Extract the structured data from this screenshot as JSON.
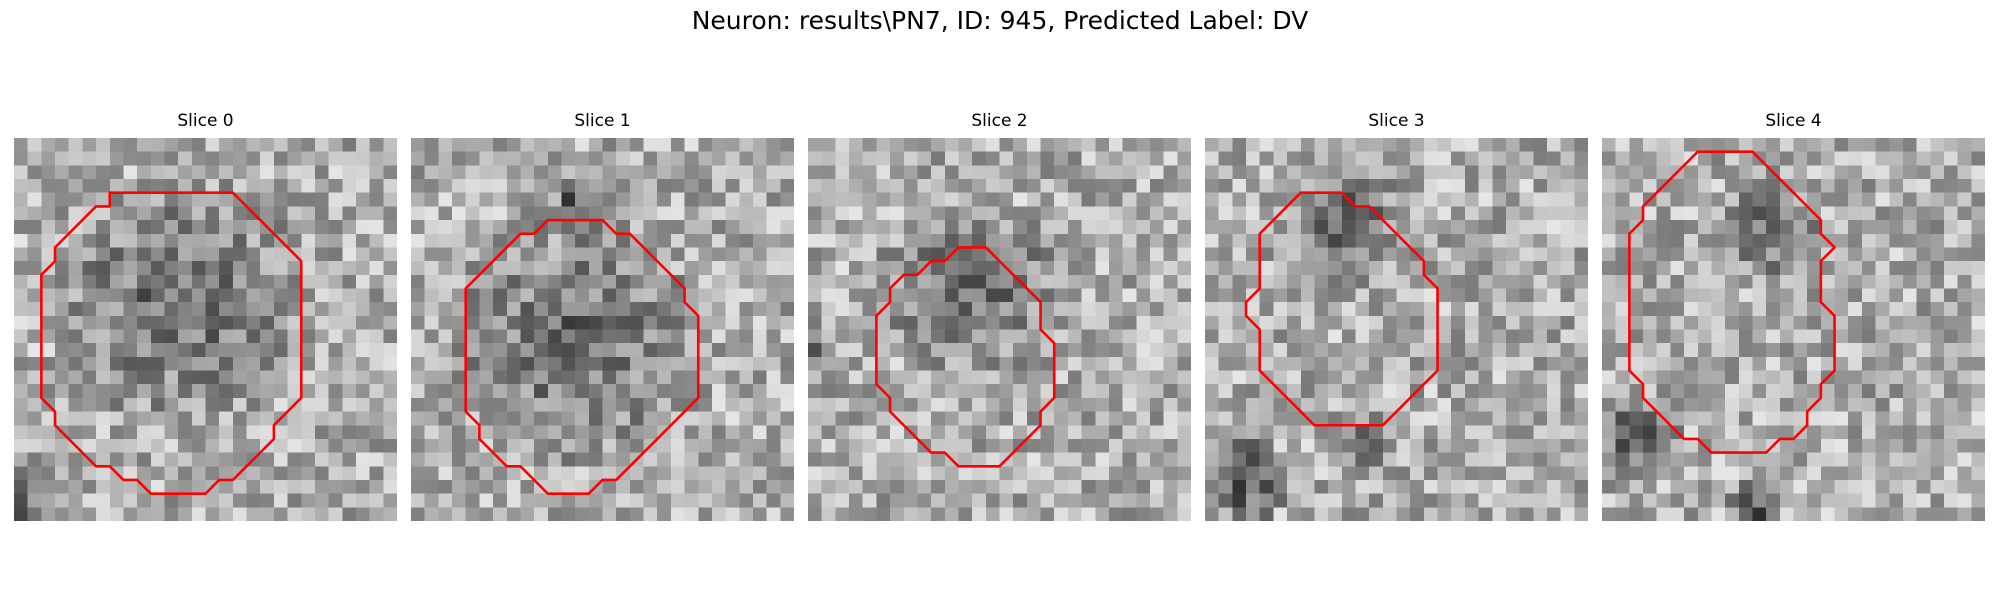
{
  "figure": {
    "title": "Neuron: results\\PN7, ID: 945, Predicted Label: DV"
  },
  "panels": [
    {
      "title": "Slice 0",
      "contour": [
        [
          14,
          4
        ],
        [
          16,
          4
        ],
        [
          17,
          5
        ],
        [
          18,
          6
        ],
        [
          19,
          7
        ],
        [
          20,
          8
        ],
        [
          21,
          9
        ],
        [
          21,
          11
        ],
        [
          21,
          13
        ],
        [
          21,
          15
        ],
        [
          21,
          17
        ],
        [
          21,
          19
        ],
        [
          20,
          20
        ],
        [
          19,
          21
        ],
        [
          19,
          22
        ],
        [
          18,
          23
        ],
        [
          17,
          24
        ],
        [
          16,
          25
        ],
        [
          15,
          25
        ],
        [
          14,
          26
        ],
        [
          13,
          26
        ],
        [
          12,
          26
        ],
        [
          11,
          26
        ],
        [
          10,
          26
        ],
        [
          9,
          25
        ],
        [
          8,
          25
        ],
        [
          7,
          24
        ],
        [
          6,
          24
        ],
        [
          5,
          23
        ],
        [
          4,
          22
        ],
        [
          3,
          21
        ],
        [
          3,
          20
        ],
        [
          2,
          19
        ],
        [
          2,
          18
        ],
        [
          2,
          16
        ],
        [
          2,
          14
        ],
        [
          2,
          12
        ],
        [
          2,
          10
        ],
        [
          3,
          9
        ],
        [
          3,
          8
        ],
        [
          4,
          7
        ],
        [
          5,
          6
        ],
        [
          6,
          5
        ],
        [
          7,
          5
        ],
        [
          7,
          4
        ],
        [
          9,
          4
        ],
        [
          11,
          4
        ],
        [
          13,
          4
        ]
      ],
      "dark_blob": [
        12,
        12,
        9.5
      ],
      "corner_dark": [
        [
          0,
          26,
          3
        ]
      ]
    },
    {
      "title": "Slice 1",
      "contour": [
        [
          13,
          6
        ],
        [
          14,
          6
        ],
        [
          15,
          7
        ],
        [
          16,
          7
        ],
        [
          17,
          8
        ],
        [
          18,
          9
        ],
        [
          19,
          10
        ],
        [
          20,
          11
        ],
        [
          20,
          12
        ],
        [
          21,
          13
        ],
        [
          21,
          15
        ],
        [
          21,
          17
        ],
        [
          21,
          19
        ],
        [
          20,
          20
        ],
        [
          19,
          21
        ],
        [
          18,
          22
        ],
        [
          17,
          23
        ],
        [
          16,
          24
        ],
        [
          15,
          25
        ],
        [
          14,
          25
        ],
        [
          13,
          26
        ],
        [
          12,
          26
        ],
        [
          11,
          26
        ],
        [
          10,
          26
        ],
        [
          9,
          25
        ],
        [
          8,
          24
        ],
        [
          7,
          24
        ],
        [
          6,
          23
        ],
        [
          5,
          22
        ],
        [
          5,
          21
        ],
        [
          4,
          20
        ],
        [
          4,
          19
        ],
        [
          4,
          17
        ],
        [
          4,
          15
        ],
        [
          4,
          13
        ],
        [
          4,
          11
        ],
        [
          5,
          10
        ],
        [
          6,
          9
        ],
        [
          7,
          8
        ],
        [
          8,
          7
        ],
        [
          9,
          7
        ],
        [
          10,
          6
        ],
        [
          11,
          6
        ],
        [
          12,
          6
        ]
      ],
      "dark_blob": [
        12,
        15,
        9.5
      ],
      "corner_dark": [
        [
          12,
          5,
          2
        ]
      ]
    },
    {
      "title": "Slice 2",
      "contour": [
        [
          11,
          8
        ],
        [
          13,
          8
        ],
        [
          14,
          9
        ],
        [
          15,
          10
        ],
        [
          16,
          11
        ],
        [
          17,
          12
        ],
        [
          17,
          14
        ],
        [
          18,
          15
        ],
        [
          18,
          17
        ],
        [
          18,
          19
        ],
        [
          17,
          20
        ],
        [
          17,
          21
        ],
        [
          16,
          22
        ],
        [
          15,
          23
        ],
        [
          14,
          24
        ],
        [
          13,
          24
        ],
        [
          12,
          24
        ],
        [
          11,
          24
        ],
        [
          10,
          23
        ],
        [
          9,
          23
        ],
        [
          8,
          22
        ],
        [
          7,
          21
        ],
        [
          6,
          20
        ],
        [
          6,
          19
        ],
        [
          5,
          18
        ],
        [
          5,
          17
        ],
        [
          5,
          15
        ],
        [
          5,
          13
        ],
        [
          6,
          12
        ],
        [
          6,
          11
        ],
        [
          7,
          10
        ],
        [
          8,
          10
        ],
        [
          9,
          9
        ],
        [
          10,
          9
        ]
      ],
      "dark_blob": [
        12,
        11,
        7
      ],
      "corner_dark": [
        [
          0,
          15,
          2
        ]
      ]
    },
    {
      "title": "Slice 3",
      "contour": [
        [
          8,
          4
        ],
        [
          10,
          4
        ],
        [
          11,
          5
        ],
        [
          12,
          5
        ],
        [
          13,
          6
        ],
        [
          14,
          7
        ],
        [
          15,
          8
        ],
        [
          16,
          9
        ],
        [
          16,
          10
        ],
        [
          17,
          11
        ],
        [
          17,
          13
        ],
        [
          17,
          15
        ],
        [
          17,
          17
        ],
        [
          16,
          18
        ],
        [
          15,
          19
        ],
        [
          14,
          20
        ],
        [
          13,
          21
        ],
        [
          12,
          21
        ],
        [
          11,
          21
        ],
        [
          10,
          21
        ],
        [
          9,
          21
        ],
        [
          8,
          21
        ],
        [
          7,
          20
        ],
        [
          6,
          19
        ],
        [
          5,
          18
        ],
        [
          4,
          17
        ],
        [
          4,
          16
        ],
        [
          4,
          14
        ],
        [
          3,
          13
        ],
        [
          3,
          12
        ],
        [
          4,
          11
        ],
        [
          4,
          9
        ],
        [
          4,
          7
        ],
        [
          5,
          6
        ],
        [
          6,
          5
        ],
        [
          7,
          4
        ]
      ],
      "dark_blob": [
        10,
        6,
        5
      ],
      "corner_dark": [
        [
          3,
          25,
          3.5
        ],
        [
          12,
          22,
          2
        ]
      ]
    },
    {
      "title": "Slice 4",
      "contour": [
        [
          8,
          1
        ],
        [
          9,
          1
        ],
        [
          10,
          1
        ],
        [
          11,
          1
        ],
        [
          12,
          2
        ],
        [
          13,
          3
        ],
        [
          14,
          4
        ],
        [
          15,
          5
        ],
        [
          16,
          6
        ],
        [
          16,
          7
        ],
        [
          17,
          8
        ],
        [
          16,
          9
        ],
        [
          16,
          10
        ],
        [
          16,
          12
        ],
        [
          17,
          13
        ],
        [
          17,
          15
        ],
        [
          17,
          17
        ],
        [
          16,
          18
        ],
        [
          16,
          19
        ],
        [
          15,
          20
        ],
        [
          15,
          21
        ],
        [
          14,
          22
        ],
        [
          13,
          22
        ],
        [
          12,
          23
        ],
        [
          11,
          23
        ],
        [
          10,
          23
        ],
        [
          9,
          23
        ],
        [
          8,
          23
        ],
        [
          7,
          22
        ],
        [
          6,
          22
        ],
        [
          5,
          21
        ],
        [
          4,
          20
        ],
        [
          3,
          19
        ],
        [
          3,
          18
        ],
        [
          2,
          17
        ],
        [
          2,
          15
        ],
        [
          2,
          13
        ],
        [
          2,
          11
        ],
        [
          2,
          9
        ],
        [
          2,
          7
        ],
        [
          3,
          6
        ],
        [
          3,
          5
        ],
        [
          4,
          4
        ],
        [
          5,
          3
        ],
        [
          6,
          2
        ],
        [
          7,
          1
        ]
      ],
      "dark_blob": [
        12,
        7,
        4
      ],
      "corner_dark": [
        [
          3,
          22,
          3.5
        ],
        [
          11,
          27,
          2
        ]
      ]
    }
  ]
}
